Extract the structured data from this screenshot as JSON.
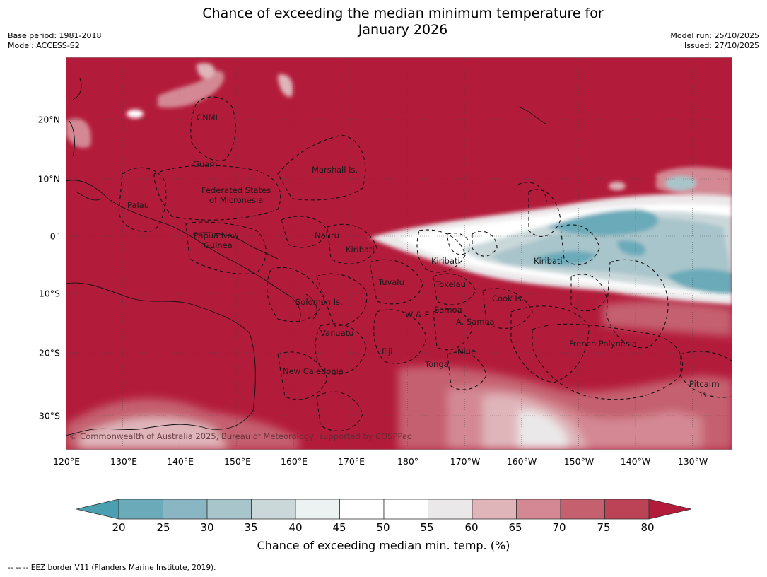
{
  "title": {
    "line1": "Chance of exceeding the median minimum temperature for",
    "line2": "January 2026"
  },
  "meta_left": {
    "base_period": "Base period: 1981-2018",
    "model": "Model: ACCESS-S2"
  },
  "meta_right": {
    "model_run": "Model run: 25/10/2025",
    "issued": "Issued: 27/10/2025"
  },
  "copyright": "© Commonwealth of Australia 2025, Bureau of Meteorology, supported by COSPPac",
  "lat_labels": [
    "20°N",
    "10°N",
    "0°",
    "10°S",
    "20°S",
    "30°S"
  ],
  "lon_labels": [
    "120°E",
    "130°E",
    "140°E",
    "150°E",
    "160°E",
    "170°E",
    "180°",
    "170°W",
    "160°W",
    "150°W",
    "140°W",
    "130°W"
  ],
  "regions": {
    "cnmi": "CNMI",
    "guam": "Guam",
    "palau": "Palau",
    "fsm_1": "Federated States",
    "fsm_2": "of Micronesia",
    "marshall": "Marshall Is.",
    "png_1": "Papua New",
    "png_2": "Guinea",
    "nauru": "Nauru",
    "kiribati_west": "Kiribati",
    "kiribati_central": "Kiribati",
    "kiribati_east": "Kiribati",
    "tuvalu": "Tuvalu",
    "tokelau": "Tokelau",
    "solomon": "Solomon Is.",
    "cook": "Cook Is.",
    "samoa": "Samoa",
    "wf": "W & F",
    "asamoa": "A. Samoa",
    "vanuatu": "Vanuatu",
    "fiji": "Fiji",
    "niue": "Niue",
    "tonga": "Tonga",
    "new_caledonia": "New Caledonia",
    "french_polynesia": "French Polynesia",
    "pitcairn_1": "Pitcairn",
    "pitcairn_2": "Is."
  },
  "colorbar": {
    "ticks": [
      "20",
      "25",
      "30",
      "35",
      "40",
      "45",
      "50",
      "55",
      "60",
      "65",
      "70",
      "75",
      "80"
    ],
    "colors": [
      "#4aa0b0",
      "#6aaab9",
      "#8ab5c2",
      "#a8c5cb",
      "#cad8da",
      "#ecf1f2",
      "#ffffff",
      "#ffffff",
      "#ebe8e9",
      "#dfb5ba",
      "#d38893",
      "#c5606f",
      "#bb4355",
      "#b31b3a"
    ],
    "label": "Chance of exceeding median min. temp. (%)"
  },
  "footnote": "--  --  -- EEZ border V11 (Flanders Marine Institute, 2019)."
}
